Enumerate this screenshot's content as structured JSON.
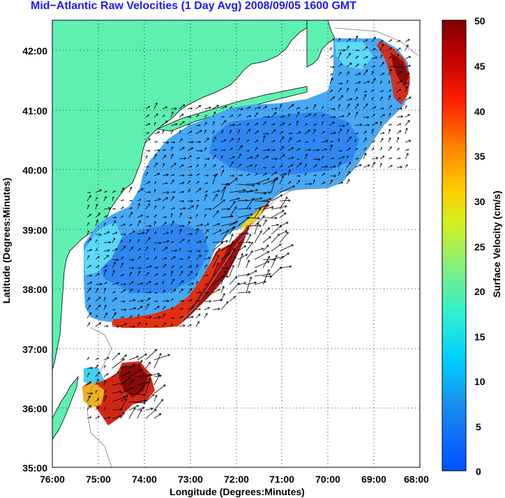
{
  "title": "Mid−Atlantic Raw Velocities (1 Day Avg) 2008/09/05 1600 GMT",
  "map": {
    "xlabel": "Longitude (Degrees:Minutes)",
    "ylabel": "Latitude (Degrees:Minutes)",
    "lon_range": [
      -76,
      -68
    ],
    "lat_range": [
      35,
      42.5
    ],
    "x_ticks": [
      "76:00",
      "75:00",
      "74:00",
      "73:00",
      "72:00",
      "71:00",
      "70:00",
      "69:00",
      "68:00"
    ],
    "y_ticks": [
      "35:00",
      "36:00",
      "37:00",
      "38:00",
      "39:00",
      "40:00",
      "41:00",
      "42:00"
    ],
    "land_color": "#5ef0b0",
    "grid": "dotted"
  },
  "colorbar": {
    "label": "Surface Velocity (cm/s)",
    "ticks": [
      "0",
      "5",
      "10",
      "15",
      "20",
      "25",
      "30",
      "35",
      "40",
      "45",
      "50"
    ],
    "range": [
      0,
      50
    ],
    "colormap": "jet"
  },
  "chart_data": {
    "type": "heatmap",
    "title": "Mid−Atlantic Raw Velocities (1 Day Avg) 2008/09/05 1600 GMT",
    "xlabel": "Longitude (Degrees:Minutes)",
    "ylabel": "Latitude (Degrees:Minutes)",
    "xlim": [
      -76,
      -68
    ],
    "ylim": [
      35,
      42.5
    ],
    "clim": [
      0,
      50
    ],
    "clabel": "Surface Velocity (cm/s)"
  }
}
